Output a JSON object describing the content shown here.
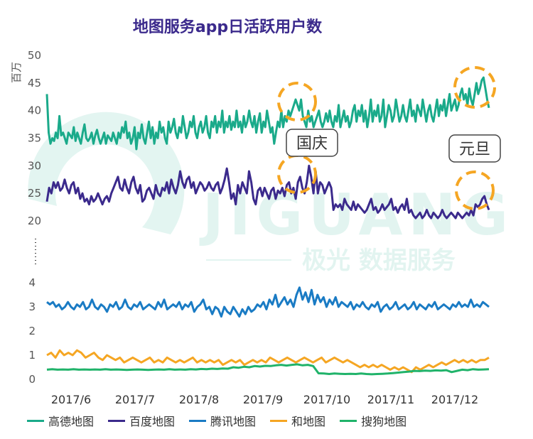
{
  "chart_data": {
    "type": "line",
    "title": "地图服务app日活跃用户数",
    "ylabel": "百万",
    "upper_ylim": [
      20,
      50
    ],
    "upper_ticks": [
      "50",
      "45",
      "40",
      "35",
      "30",
      "25",
      "20"
    ],
    "lower_ylim": [
      0,
      4
    ],
    "lower_ticks": [
      "4",
      "3",
      "2",
      "1",
      "0"
    ],
    "x_tick_labels": [
      "2017/6",
      "2017/7",
      "2017/8",
      "2017/9",
      "2017/10",
      "2017/11",
      "2017/12"
    ],
    "annotations": [
      {
        "text": "国庆",
        "series": "高德地图"
      },
      {
        "text": "元旦",
        "series": "百度地图"
      }
    ],
    "watermark": {
      "brand": "JIGUANG",
      "subtitle": "极光 数据服务"
    },
    "series": [
      {
        "name": "高德地图",
        "color": "#1aaa8a",
        "values": [
          43,
          36,
          34,
          35,
          34.5,
          36,
          35,
          39,
          35.5,
          36,
          35,
          34,
          36,
          35.5,
          35,
          37,
          34.5,
          36,
          35,
          34,
          36,
          37.5,
          35,
          34.5,
          35,
          36,
          34,
          35.5,
          36.5,
          35,
          34,
          35,
          36,
          34,
          35.5,
          35,
          34.5,
          36,
          35,
          34,
          36,
          35,
          37,
          36,
          38,
          35,
          36,
          34,
          35,
          37,
          33,
          36,
          35,
          37.5,
          35,
          34,
          36,
          38,
          35,
          37,
          34,
          36,
          35,
          38,
          36,
          37,
          35,
          34,
          38,
          36,
          37,
          38.5,
          36,
          35,
          37,
          36,
          39,
          37,
          35,
          36,
          38,
          37,
          39,
          36,
          35,
          37,
          38,
          36,
          37,
          39,
          36,
          35,
          38,
          37,
          39,
          36,
          38,
          37,
          40,
          36,
          38,
          37,
          39,
          36.5,
          38,
          37,
          40,
          37,
          38,
          36,
          39,
          37,
          38,
          40,
          38,
          37,
          39,
          36,
          38,
          39.5,
          36,
          38,
          37,
          40,
          38,
          36,
          37,
          34,
          36,
          38,
          37,
          40,
          37,
          39,
          38,
          40,
          39,
          40,
          41,
          42,
          41,
          40,
          42,
          39,
          38,
          37,
          40,
          38,
          39,
          37,
          38,
          39,
          40,
          38,
          37,
          38,
          39.5,
          38,
          40,
          38,
          37,
          39,
          38,
          41,
          37,
          38.5,
          40,
          38,
          39,
          37,
          38,
          40,
          41,
          38,
          40,
          39,
          41,
          38,
          40,
          37,
          39,
          42,
          38,
          40,
          39,
          41,
          38,
          39,
          42,
          37,
          39,
          41,
          40,
          38,
          39,
          42,
          40,
          38,
          39,
          41,
          39,
          38,
          40,
          42,
          39,
          40,
          38,
          41,
          40,
          39,
          42,
          40,
          38,
          40,
          41,
          39,
          38,
          40,
          42,
          39,
          41,
          40,
          42,
          39,
          41,
          43,
          40,
          41,
          42,
          40,
          41,
          43,
          44,
          42,
          43,
          41,
          44,
          42,
          41,
          43,
          45,
          43,
          44,
          45.5,
          46,
          44,
          42,
          40.5
        ]
      },
      {
        "name": "百度地图",
        "color": "#3b2a8c",
        "values": [
          23.5,
          26,
          25,
          27,
          26,
          27,
          25.5,
          26,
          27.5,
          26,
          25,
          26.5,
          27,
          25,
          26,
          24,
          25,
          23.5,
          24,
          23,
          24.5,
          23.5,
          24,
          25,
          24,
          23,
          24,
          24.5,
          23.5,
          25,
          26,
          27,
          28,
          26,
          25.5,
          27.5,
          26,
          25,
          27,
          28,
          26,
          25,
          26.5,
          23.5,
          24,
          25.5,
          26,
          25,
          24,
          26.5,
          25,
          24.5,
          26,
          25.5,
          27,
          25,
          27.5,
          26,
          25,
          26.5,
          29,
          27,
          26,
          27.5,
          28,
          26,
          27,
          25,
          26,
          27,
          26.5,
          25.5,
          26,
          27,
          26,
          25.5,
          26.5,
          27,
          25,
          26,
          27.5,
          29.5,
          27,
          24,
          25,
          23,
          26.5,
          25,
          27,
          26,
          25,
          29,
          27,
          24,
          23,
          25.5,
          26,
          24.5,
          26,
          25,
          24,
          25.5,
          26,
          24,
          25.5,
          25,
          26,
          24.5,
          26.5,
          27,
          25,
          26,
          24,
          27,
          28,
          26,
          25,
          27,
          30,
          28,
          25,
          29,
          25,
          27,
          26.5,
          25,
          26,
          27,
          26,
          22,
          23,
          22.5,
          23,
          22,
          24,
          23,
          22.5,
          22,
          23.5,
          22,
          23,
          22.5,
          22,
          21.5,
          22,
          23,
          24,
          22,
          22.5,
          21.5,
          22,
          23,
          22,
          22.5,
          23,
          24,
          22,
          22.5,
          21.5,
          22.5,
          23,
          22,
          24,
          21.5,
          22,
          21,
          20.5,
          21,
          21.5,
          20.5,
          21,
          22,
          21,
          20.5,
          21.5,
          21,
          20.5,
          21,
          22,
          21,
          20.5,
          21,
          21.5,
          21,
          20.5,
          21.5,
          21,
          20.5,
          21,
          21.5,
          21,
          22,
          21,
          23,
          22.5,
          23,
          24,
          24.5,
          23,
          22
        ]
      },
      {
        "name": "腾讯地图",
        "color": "#1a7bc4",
        "values": [
          3.2,
          3.1,
          3.2,
          3.0,
          3.1,
          2.9,
          3.0,
          3.2,
          3.0,
          2.9,
          3.1,
          3.0,
          3.2,
          2.9,
          3.0,
          3.3,
          3.0,
          2.9,
          3.1,
          3.0,
          2.8,
          3.1,
          3.0,
          3.2,
          2.9,
          3.0,
          3.3,
          3.0,
          2.9,
          3.1,
          3.0,
          3.2,
          2.9,
          3.0,
          3.1,
          3.0,
          2.9,
          3.2,
          3.0,
          3.3,
          2.9,
          3.0,
          3.1,
          3.0,
          3.2,
          2.9,
          3.1,
          3.0,
          3.2,
          2.8,
          3.0,
          3.1,
          3.3,
          2.9,
          3.0,
          2.7,
          3.0,
          2.9,
          2.6,
          3.0,
          2.8,
          2.7,
          3.0,
          2.8,
          2.6,
          2.9,
          2.7,
          3.0,
          2.8,
          2.9,
          3.1,
          3.0,
          3.2,
          2.9,
          3.3,
          3.1,
          3.5,
          3.0,
          3.2,
          3.4,
          3.1,
          3.3,
          3.0,
          3.5,
          3.8,
          3.3,
          3.6,
          3.2,
          3.7,
          3.1,
          3.5,
          3.2,
          3.4,
          3.0,
          3.3,
          3.1,
          3.4,
          3.0,
          3.2,
          3.1,
          3.0,
          3.2,
          2.9,
          3.1,
          3.0,
          3.2,
          3.0,
          2.9,
          3.1,
          3.0,
          3.2,
          2.8,
          3.0,
          3.1,
          2.9,
          3.0,
          3.2,
          2.9,
          3.0,
          3.1,
          2.9,
          3.0,
          3.2,
          2.9,
          3.1,
          3.0,
          2.9,
          3.1,
          3.0,
          3.2,
          2.9,
          3.0,
          3.1,
          3.0,
          2.9,
          3.1,
          3.0,
          3.2,
          3.0,
          3.1,
          3.0,
          3.3,
          3.0,
          3.1,
          3.0,
          3.2,
          3.1,
          3.0
        ]
      },
      {
        "name": "和地图",
        "color": "#f5a623",
        "values": [
          1.0,
          1.1,
          0.9,
          1.2,
          1.0,
          1.1,
          1.0,
          1.2,
          1.1,
          0.9,
          1.0,
          1.1,
          0.9,
          0.8,
          1.0,
          0.9,
          0.8,
          0.9,
          0.7,
          0.8,
          0.9,
          0.8,
          0.7,
          0.8,
          0.9,
          0.7,
          0.8,
          0.7,
          0.9,
          0.8,
          0.7,
          0.8,
          0.7,
          0.8,
          0.9,
          0.7,
          0.8,
          0.7,
          0.8,
          0.7,
          0.8,
          0.6,
          0.7,
          0.8,
          0.7,
          0.8,
          0.6,
          0.7,
          0.8,
          0.7,
          0.8,
          0.7,
          0.9,
          0.8,
          0.7,
          0.8,
          0.9,
          0.8,
          0.7,
          0.8,
          0.9,
          0.8,
          0.7,
          0.8,
          0.9,
          0.7,
          0.8,
          0.9,
          0.8,
          0.7,
          0.8,
          0.7,
          0.6,
          0.5,
          0.6,
          0.5,
          0.6,
          0.5,
          0.6,
          0.5,
          0.4,
          0.5,
          0.4,
          0.5,
          0.4,
          0.3,
          0.5,
          0.4,
          0.5,
          0.6,
          0.5,
          0.6,
          0.7,
          0.6,
          0.7,
          0.8,
          0.7,
          0.8,
          0.7,
          0.8,
          0.7,
          0.8,
          0.8,
          0.9
        ]
      },
      {
        "name": "搜狗地图",
        "color": "#20b36a",
        "values": [
          0.4,
          0.42,
          0.4,
          0.41,
          0.4,
          0.42,
          0.4,
          0.41,
          0.4,
          0.41,
          0.4,
          0.42,
          0.4,
          0.41,
          0.4,
          0.39,
          0.4,
          0.41,
          0.4,
          0.39,
          0.4,
          0.41,
          0.4,
          0.42,
          0.4,
          0.41,
          0.4,
          0.42,
          0.41,
          0.43,
          0.42,
          0.44,
          0.43,
          0.45,
          0.44,
          0.5,
          0.48,
          0.52,
          0.5,
          0.55,
          0.53,
          0.56,
          0.55,
          0.58,
          0.6,
          0.57,
          0.6,
          0.62,
          0.58,
          0.6,
          0.55,
          0.25,
          0.24,
          0.22,
          0.24,
          0.23,
          0.22,
          0.23,
          0.22,
          0.24,
          0.22,
          0.21,
          0.22,
          0.23,
          0.24,
          0.26,
          0.28,
          0.3,
          0.32,
          0.35,
          0.34,
          0.36,
          0.35,
          0.37,
          0.36,
          0.38,
          0.3,
          0.35,
          0.4,
          0.38,
          0.42,
          0.4,
          0.41,
          0.42
        ]
      }
    ]
  }
}
